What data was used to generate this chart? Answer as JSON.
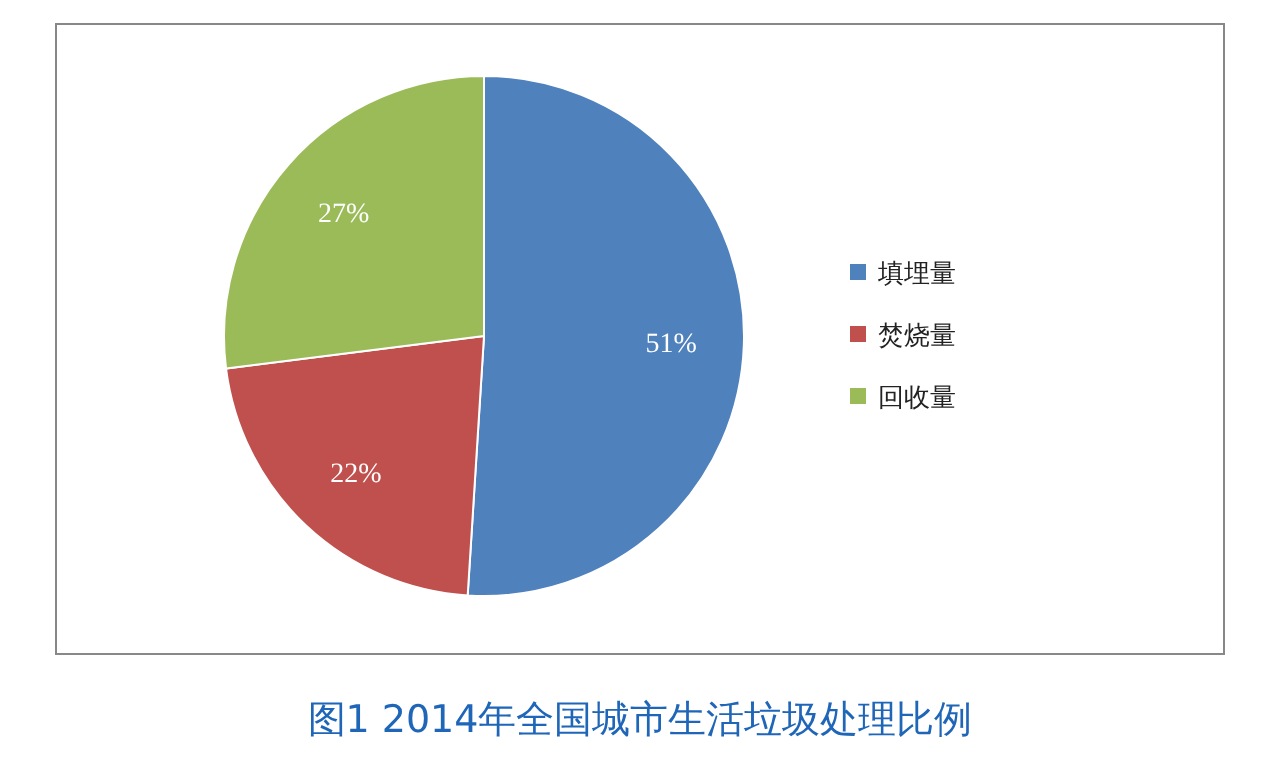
{
  "chart_data": {
    "type": "pie",
    "title": "图1 2014年全国城市生活垃圾处理比例",
    "categories": [
      "填埋量",
      "焚烧量",
      "回收量"
    ],
    "values": [
      51,
      22,
      27
    ],
    "colors": [
      "#4f81bd",
      "#c0504d",
      "#9bbb59"
    ],
    "value_labels": [
      "51%",
      "22%",
      "27%"
    ],
    "legend": "right"
  }
}
